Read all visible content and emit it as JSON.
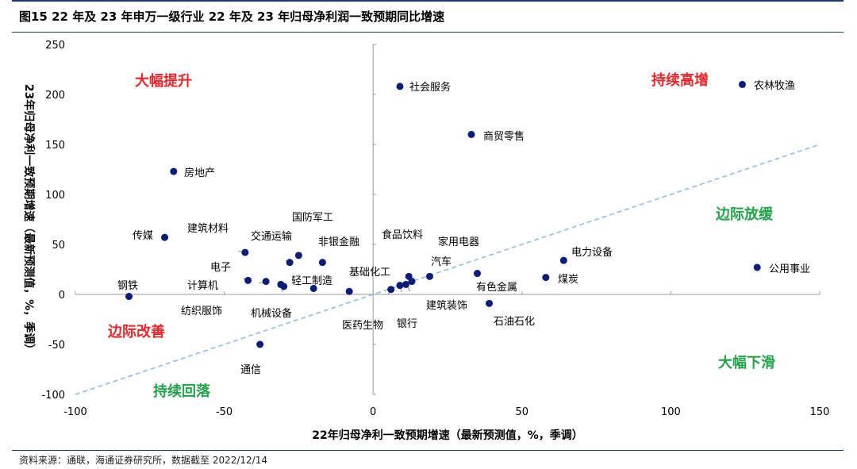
{
  "title": "图15 22 年及 23 年申万一级行业 22 年及 23 年归母净利润一致预期同比增速",
  "source": "资料来源：通联，海通证券研究所，数据截至 2022/12/14",
  "colors": {
    "point": "#0b1d7a",
    "diagonal": "#8fbde8",
    "red": "#e8262a",
    "green": "#22a34a",
    "axis": "#9a9a9a"
  },
  "chart_data": {
    "type": "scatter",
    "xlabel": "22年归母净利一致预期增速（最新预测值，%，季调）",
    "ylabel": "23年归母净利一致预期增速（最新预测值，%，季调）",
    "xlim": [
      -100,
      150
    ],
    "ylim": [
      -100,
      250
    ],
    "xticks": [
      "-100",
      "-50",
      "0",
      "50",
      "100",
      "150"
    ],
    "yticks": [
      "250",
      "200",
      "150",
      "100",
      "50",
      "0",
      "-50",
      "-100"
    ],
    "reference_line": "y = x",
    "quadrant_labels": [
      {
        "text": "大幅提升",
        "color": "red"
      },
      {
        "text": "持续高增",
        "color": "red"
      },
      {
        "text": "边际放缓",
        "color": "green"
      },
      {
        "text": "边际改善",
        "color": "red"
      },
      {
        "text": "大幅下滑",
        "color": "green"
      },
      {
        "text": "持续回落",
        "color": "green"
      }
    ],
    "points": [
      {
        "label": "社会服务",
        "x": 9,
        "y": 208
      },
      {
        "label": "农林牧渔",
        "x": 124,
        "y": 210
      },
      {
        "label": "商贸零售",
        "x": 33,
        "y": 160
      },
      {
        "label": "房地产",
        "x": -67,
        "y": 123
      },
      {
        "label": "传媒",
        "x": -70,
        "y": 57
      },
      {
        "label": "建筑材料",
        "x": -43,
        "y": 42
      },
      {
        "label": "国防军工",
        "x": -25,
        "y": 39
      },
      {
        "label": "交通运输",
        "x": -28,
        "y": 32
      },
      {
        "label": "非银金融",
        "x": -17,
        "y": 32
      },
      {
        "label": "电子",
        "x": -42,
        "y": 14
      },
      {
        "label": "计算机",
        "x": -36,
        "y": 13
      },
      {
        "label": "纺织服饰",
        "x": -31,
        "y": 10
      },
      {
        "label": "机械设备",
        "x": -30,
        "y": 8
      },
      {
        "label": "轻工制造",
        "x": -20,
        "y": 6
      },
      {
        "label": "钢铁",
        "x": -82,
        "y": -2
      },
      {
        "label": "通信",
        "x": -38,
        "y": -50
      },
      {
        "label": "基础化工",
        "x": -8,
        "y": 3
      },
      {
        "label": "医药生物",
        "x": 6,
        "y": 5
      },
      {
        "label": "银行",
        "x": 9,
        "y": 9
      },
      {
        "label": "食品饮料",
        "x": 12,
        "y": 18
      },
      {
        "label": "家用电器",
        "x": 13,
        "y": 13
      },
      {
        "label": "建筑装饰",
        "x": 11,
        "y": 10
      },
      {
        "label": "汽车",
        "x": 19,
        "y": 18
      },
      {
        "label": "有色金属",
        "x": 35,
        "y": 21
      },
      {
        "label": "石油石化",
        "x": 39,
        "y": -9
      },
      {
        "label": "电力设备",
        "x": 64,
        "y": 34
      },
      {
        "label": "煤炭",
        "x": 58,
        "y": 17
      },
      {
        "label": "公用事业",
        "x": 129,
        "y": 27
      }
    ]
  }
}
